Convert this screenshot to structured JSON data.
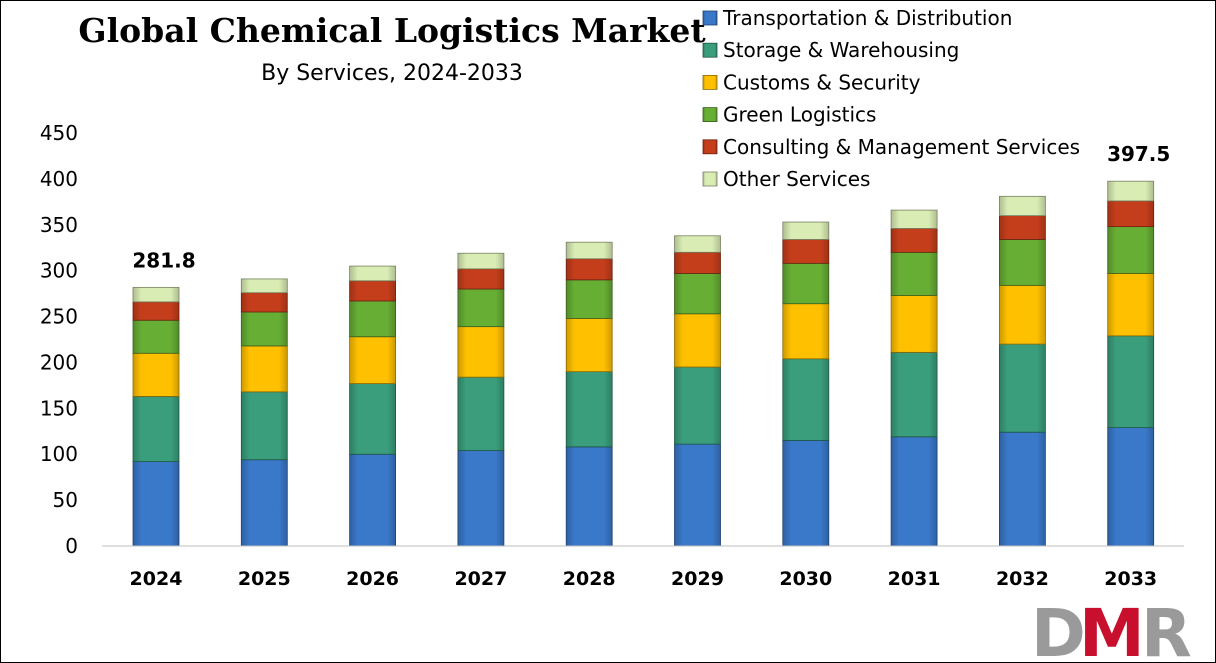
{
  "chart_data": {
    "type": "bar",
    "stacked": true,
    "title": "Global Chemical Logistics Market",
    "subtitle": "By Services, 2024-2033",
    "categories": [
      "2024",
      "2025",
      "2026",
      "2027",
      "2028",
      "2029",
      "2030",
      "2031",
      "2032",
      "2033"
    ],
    "ylim": [
      0,
      450
    ],
    "yticks": [
      "0",
      "50",
      "100",
      "150",
      "200",
      "250",
      "300",
      "350",
      "400",
      "450"
    ],
    "grid": false,
    "legend_position": "top-right",
    "series": [
      {
        "name": "Transportation & Distribution",
        "color": "#3a78c9",
        "values": [
          92,
          94,
          100,
          104,
          108,
          111,
          115,
          119,
          124,
          129
        ]
      },
      {
        "name": "Storage & Warehousing",
        "color": "#3a9e7c",
        "values": [
          71,
          74,
          77,
          80,
          82,
          84,
          89,
          92,
          96,
          100
        ]
      },
      {
        "name": "Customs & Security",
        "color": "#ffc000",
        "values": [
          47,
          50,
          51,
          55,
          58,
          58,
          60,
          62,
          64,
          68
        ]
      },
      {
        "name": "Green Logistics",
        "color": "#67ae34",
        "values": [
          36,
          37,
          39,
          41,
          42,
          44,
          44,
          47,
          50,
          51
        ]
      },
      {
        "name": "Consulting & Management Services",
        "color": "#c53e1c",
        "values": [
          20,
          21,
          22,
          22,
          23,
          23,
          26,
          26,
          26,
          28
        ]
      },
      {
        "name": "Other Services",
        "color": "#d9ecb4",
        "values": [
          15.8,
          15,
          16,
          17,
          18,
          18,
          19,
          20,
          21,
          21.5
        ]
      }
    ],
    "annotations": [
      {
        "category": "2024",
        "text": "281.8"
      },
      {
        "category": "2033",
        "text": "397.5"
      }
    ]
  },
  "logo": {
    "text": "DMR",
    "colors": [
      "#9a9a9a",
      "#c8102e",
      "#9a9a9a"
    ]
  }
}
